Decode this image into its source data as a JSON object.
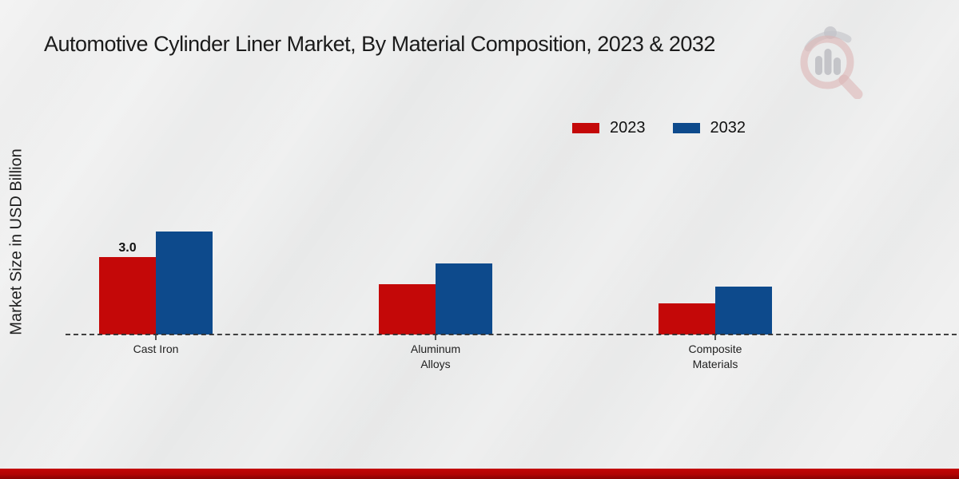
{
  "title": "Automotive Cylinder Liner Market, By Material Composition, 2023 & 2032",
  "y_axis_label": "Market Size in USD Billion",
  "legend": {
    "items": [
      {
        "label": "2023",
        "color": "#c40808"
      },
      {
        "label": "2032",
        "color": "#0d4a8c"
      }
    ]
  },
  "watermark": {
    "icon": "magnifier-bar-chart-logo"
  },
  "chart_data": {
    "type": "bar",
    "title": "Automotive Cylinder Liner Market, By Material Composition, 2023 & 2032",
    "categories": [
      "Cast Iron",
      "Aluminum Alloys",
      "Composite Materials"
    ],
    "series": [
      {
        "name": "2023",
        "color": "#c40808",
        "values": [
          3.0,
          1.95,
          1.2
        ]
      },
      {
        "name": "2032",
        "color": "#0d4a8c",
        "values": [
          4.0,
          2.75,
          1.85
        ]
      }
    ],
    "xlabel": "",
    "ylabel": "Market Size in USD Billion",
    "ylim": [
      0,
      4.5
    ],
    "grid": false,
    "y_axis_ticks_visible": false,
    "legend_position": "top-right",
    "baseline_style": "dashed",
    "value_labels": [
      {
        "category": "Cast Iron",
        "series": "2023",
        "text": "3.0"
      }
    ]
  },
  "colors": {
    "series_2023": "#c40808",
    "series_2032": "#0d4a8c",
    "background": "#eaeaea",
    "bottom_band": "#b10303",
    "baseline": "#2d2d2d",
    "text": "#1b1b1b"
  }
}
